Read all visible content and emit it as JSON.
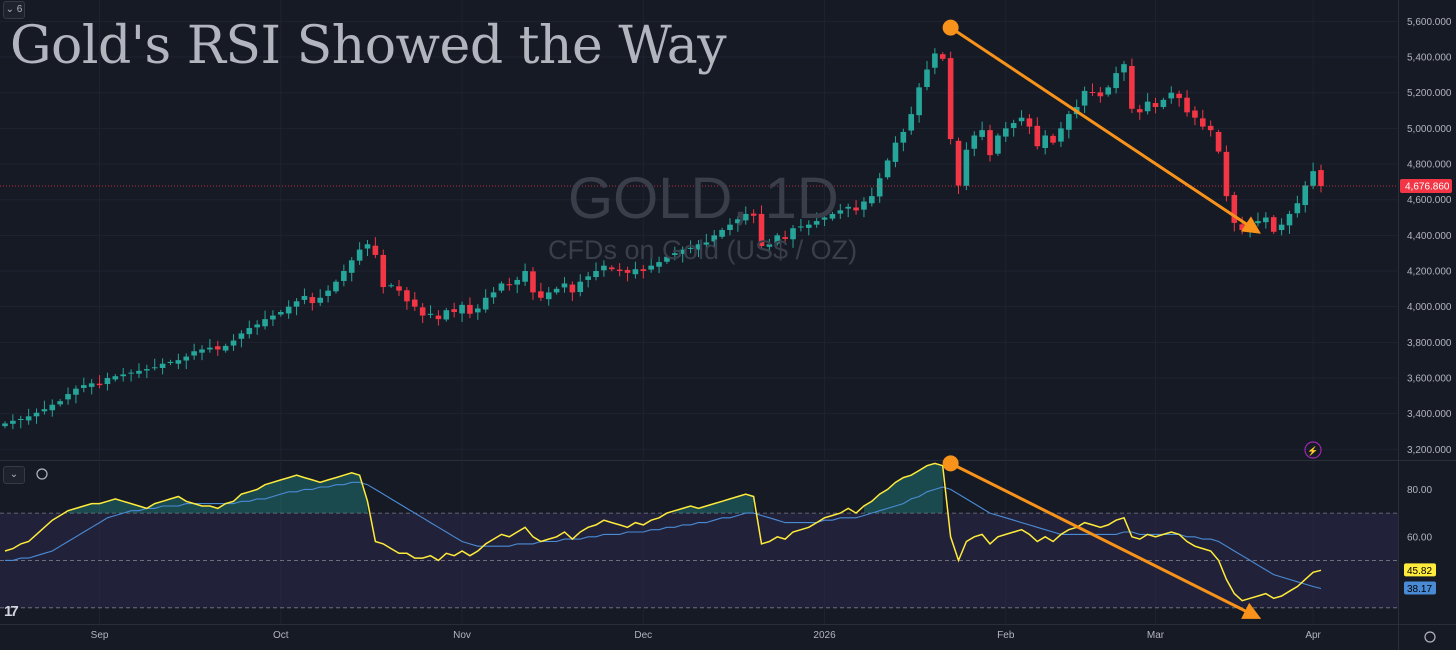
{
  "header": {
    "title": "Gold's RSI Showed the Way",
    "interval_badge": "6"
  },
  "watermark": {
    "symbol": "GOLD, 1D",
    "description": "CFDs on Gold (US$ / OZ)"
  },
  "price_label": "4,676.860",
  "rsi_labels": {
    "rsi": "45.82",
    "ma": "38.17"
  },
  "chart_data": {
    "type": "candlestick",
    "price_axis": {
      "ticks": [
        "5,600.000",
        "5,400.000",
        "5,200.000",
        "5,000.000",
        "4,800.000",
        "4,600.000",
        "4,400.000",
        "4,200.000",
        "4,000.000",
        "3,800.000",
        "3,600.000",
        "3,400.000",
        "3,200.000"
      ],
      "range": [
        3140,
        5720
      ]
    },
    "rsi_axis": {
      "ticks": [
        "80.00",
        "60.00"
      ],
      "band": [
        30,
        70
      ],
      "range": [
        24,
        92
      ]
    },
    "x_ticks": [
      "Sep",
      "Oct",
      "Nov",
      "Dec",
      "2026",
      "Feb",
      "Mar",
      "Apr"
    ],
    "last_price": 4676.86,
    "closes": [
      3345,
      3360,
      3370,
      3385,
      3405,
      3425,
      3450,
      3470,
      3510,
      3540,
      3560,
      3570,
      3560,
      3600,
      3610,
      3620,
      3630,
      3640,
      3650,
      3660,
      3680,
      3690,
      3700,
      3720,
      3750,
      3760,
      3770,
      3760,
      3780,
      3810,
      3850,
      3880,
      3900,
      3930,
      3950,
      3970,
      4000,
      4030,
      4060,
      4020,
      4050,
      4090,
      4140,
      4200,
      4260,
      4320,
      4350,
      4290,
      4110,
      4120,
      4090,
      4030,
      4000,
      3950,
      3960,
      3930,
      3980,
      3970,
      4010,
      3960,
      3990,
      4050,
      4080,
      4130,
      4120,
      4150,
      4200,
      4080,
      4050,
      4080,
      4100,
      4130,
      4080,
      4140,
      4170,
      4200,
      4230,
      4210,
      4200,
      4190,
      4210,
      4200,
      4230,
      4250,
      4280,
      4300,
      4320,
      4330,
      4350,
      4360,
      4400,
      4430,
      4460,
      4490,
      4520,
      4510,
      4340,
      4350,
      4400,
      4380,
      4440,
      4450,
      4460,
      4480,
      4500,
      4520,
      4540,
      4560,
      4540,
      4590,
      4620,
      4720,
      4820,
      4920,
      4980,
      5080,
      5230,
      5330,
      5420,
      5390,
      4940,
      4680,
      4880,
      4960,
      4990,
      4850,
      4960,
      5000,
      5030,
      5060,
      5010,
      4900,
      4960,
      4920,
      5000,
      5080,
      5120,
      5210,
      5200,
      5180,
      5230,
      5310,
      5360,
      5110,
      5090,
      5150,
      5120,
      5160,
      5200,
      5170,
      5090,
      5060,
      5010,
      4990,
      4870,
      4620,
      4470,
      4430,
      4460,
      4480,
      4500,
      4420,
      4460,
      4520,
      4580,
      4680,
      4760,
      4676.86
    ],
    "rsi": [
      54,
      55,
      57,
      58,
      61,
      64,
      67,
      69,
      71,
      72,
      73,
      74,
      74,
      75,
      76,
      75,
      74,
      73,
      72,
      74,
      75,
      76,
      77,
      75,
      74,
      73,
      73,
      72,
      74,
      75,
      78,
      79,
      80,
      82,
      83,
      84,
      85,
      86,
      85,
      84,
      83,
      84,
      85,
      86,
      87,
      86,
      75,
      58,
      57,
      55,
      53,
      53,
      51,
      51,
      52,
      50,
      53,
      52,
      54,
      52,
      54,
      57,
      59,
      61,
      60,
      62,
      64,
      60,
      58,
      59,
      60,
      62,
      59,
      62,
      64,
      65,
      67,
      66,
      65,
      64,
      66,
      65,
      67,
      68,
      70,
      71,
      72,
      73,
      72,
      73,
      74,
      75,
      76,
      77,
      78,
      77,
      57,
      58,
      60,
      59,
      62,
      63,
      64,
      66,
      68,
      69,
      70,
      72,
      70,
      73,
      75,
      78,
      80,
      83,
      85,
      86,
      88,
      90,
      91,
      90,
      60,
      50,
      58,
      60,
      61,
      57,
      60,
      61,
      62,
      63,
      61,
      58,
      60,
      58,
      61,
      63,
      64,
      66,
      65,
      64,
      65,
      67,
      68,
      60,
      59,
      61,
      60,
      61,
      62,
      61,
      58,
      56,
      55,
      54,
      50,
      42,
      36,
      33,
      34,
      35,
      36,
      34,
      35,
      37,
      39,
      42,
      45,
      45.82
    ],
    "rsi_ma": [
      50,
      50,
      51,
      51,
      52,
      53,
      54,
      56,
      58,
      60,
      62,
      64,
      66,
      68,
      69,
      70,
      71,
      71,
      72,
      72,
      73,
      73,
      73,
      74,
      74,
      74,
      74,
      74,
      74,
      74,
      75,
      75,
      76,
      76,
      77,
      78,
      79,
      79,
      80,
      80,
      81,
      81,
      82,
      82,
      83,
      83,
      82,
      80,
      78,
      76,
      74,
      72,
      70,
      68,
      66,
      64,
      62,
      60,
      58,
      57,
      56,
      56,
      56,
      56,
      56,
      57,
      57,
      57,
      58,
      58,
      58,
      59,
      59,
      59,
      60,
      60,
      61,
      61,
      61,
      62,
      62,
      62,
      63,
      63,
      64,
      64,
      65,
      65,
      66,
      66,
      67,
      68,
      68,
      69,
      70,
      70,
      69,
      68,
      67,
      66,
      66,
      66,
      66,
      66,
      67,
      67,
      68,
      68,
      68,
      69,
      70,
      71,
      72,
      73,
      74,
      76,
      77,
      79,
      80,
      81,
      80,
      78,
      76,
      74,
      72,
      70,
      69,
      68,
      67,
      66,
      65,
      64,
      63,
      62,
      61,
      61,
      61,
      61,
      61,
      61,
      61,
      61,
      62,
      62,
      61,
      61,
      61,
      61,
      61,
      61,
      60,
      60,
      59,
      59,
      58,
      56,
      54,
      52,
      50,
      48,
      46,
      44,
      43,
      42,
      41,
      40,
      39,
      38.17
    ]
  },
  "annotations": {
    "price_arrow": {
      "from": [
        120,
        5565
      ],
      "to": [
        159,
        4420
      ],
      "dot_color": "#f7931a"
    },
    "rsi_arrow": {
      "from": [
        120,
        91
      ],
      "to": [
        159,
        26
      ],
      "dot_color": "#f7931a"
    }
  },
  "colors": {
    "up": "#26a69a",
    "down": "#f23645",
    "rsi": "#ffeb3b",
    "rsi_ma": "#4a8bd6",
    "arrow": "#f7931a",
    "band": "#2a2848"
  }
}
